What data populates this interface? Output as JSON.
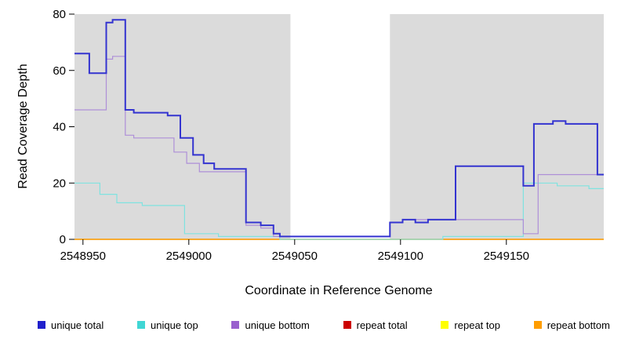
{
  "axes": {
    "y_label": "Read Coverage Depth",
    "x_label": "Coordinate in Reference Genome",
    "y_ticks": [
      0,
      20,
      40,
      60,
      80
    ],
    "x_ticks": [
      2548950,
      2549000,
      2549050,
      2549100,
      2549150
    ]
  },
  "chart_data": {
    "type": "line",
    "step": true,
    "title": "",
    "xlabel": "Coordinate in Reference Genome",
    "ylabel": "Read Coverage Depth",
    "xlim": [
      2548946,
      2549196
    ],
    "ylim": [
      0,
      80
    ],
    "grid": false,
    "plot_background": "#DBDBDB",
    "gap_region": {
      "x0": 2549048,
      "x1": 2549095,
      "color": "#FFFFFF"
    },
    "legend_position": "bottom",
    "series": [
      {
        "name": "repeat total",
        "color": "#CC0000",
        "width": 1.2,
        "points": [
          [
            2548946,
            0
          ]
        ]
      },
      {
        "name": "repeat top",
        "color": "#FFFF00",
        "width": 1.2,
        "points": [
          [
            2548946,
            0
          ]
        ]
      },
      {
        "name": "repeat bottom",
        "color": "#FF9D00",
        "width": 1.2,
        "points": [
          [
            2548946,
            0
          ]
        ]
      },
      {
        "name": "unique top",
        "color": "#7FE3E0",
        "width": 1.2,
        "points": [
          [
            2548946,
            20
          ],
          [
            2548958,
            16
          ],
          [
            2548966,
            13
          ],
          [
            2548978,
            12
          ],
          [
            2548998,
            2
          ],
          [
            2549014,
            1
          ],
          [
            2549043,
            0
          ],
          [
            2549120,
            1
          ],
          [
            2549158,
            20
          ],
          [
            2549174,
            19
          ],
          [
            2549189,
            18
          ]
        ]
      },
      {
        "name": "unique bottom",
        "color": "#AE8FD8",
        "width": 1.2,
        "points": [
          [
            2548946,
            46
          ],
          [
            2548961,
            64
          ],
          [
            2548964,
            65
          ],
          [
            2548970,
            37
          ],
          [
            2548974,
            36
          ],
          [
            2548993,
            31
          ],
          [
            2548999,
            27
          ],
          [
            2549005,
            24
          ],
          [
            2549027,
            5
          ],
          [
            2549034,
            4
          ],
          [
            2549040,
            1
          ],
          [
            2549095,
            6
          ],
          [
            2549101,
            7
          ],
          [
            2549158,
            2
          ],
          [
            2549165,
            23
          ]
        ]
      },
      {
        "name": "unique total",
        "color": "#3434D0",
        "width": 2,
        "points": [
          [
            2548946,
            66
          ],
          [
            2548953,
            59
          ],
          [
            2548961,
            77
          ],
          [
            2548964,
            78
          ],
          [
            2548970,
            46
          ],
          [
            2548974,
            45
          ],
          [
            2548990,
            44
          ],
          [
            2548996,
            36
          ],
          [
            2549002,
            30
          ],
          [
            2549007,
            27
          ],
          [
            2549012,
            25
          ],
          [
            2549027,
            6
          ],
          [
            2549034,
            5
          ],
          [
            2549040,
            2
          ],
          [
            2549043,
            1
          ],
          [
            2549095,
            6
          ],
          [
            2549101,
            7
          ],
          [
            2549107,
            6
          ],
          [
            2549113,
            7
          ],
          [
            2549126,
            26
          ],
          [
            2549158,
            19
          ],
          [
            2549163,
            41
          ],
          [
            2549172,
            42
          ],
          [
            2549178,
            41
          ],
          [
            2549193,
            23
          ]
        ]
      }
    ]
  },
  "legend": {
    "items": [
      {
        "label": "unique total",
        "color": "#2020CC"
      },
      {
        "label": "unique top",
        "color": "#40D6D4"
      },
      {
        "label": "unique bottom",
        "color": "#9960CE"
      },
      {
        "label": "repeat total",
        "color": "#CC0000"
      },
      {
        "label": "repeat top",
        "color": "#FFFF00"
      },
      {
        "label": "repeat bottom",
        "color": "#FF9D00"
      }
    ]
  }
}
